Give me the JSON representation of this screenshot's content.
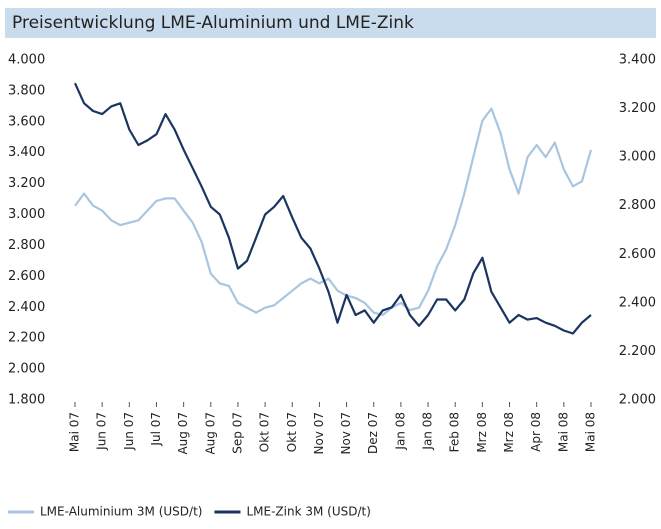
{
  "chart_data": {
    "type": "line",
    "title": "Preisentwicklung LME-Aluminium und LME-Zink",
    "categories": [
      "Mai 07",
      null,
      null,
      "Jun 07",
      null,
      null,
      "Jun 07",
      null,
      null,
      "Jul 07",
      null,
      null,
      "Aug 07",
      null,
      null,
      "Aug 07",
      null,
      null,
      "Sep 07",
      null,
      null,
      "Okt 07",
      null,
      null,
      "Okt 07",
      null,
      null,
      "Nov 07",
      null,
      null,
      "Nov 07",
      null,
      null,
      "Dez 07",
      null,
      null,
      "Jan 08",
      null,
      null,
      "Jan 08",
      null,
      null,
      "Feb 08",
      null,
      null,
      "Mrz 08",
      null,
      null,
      "Mrz 08",
      null,
      null,
      "Apr 08",
      null,
      null,
      "Mai 08",
      null,
      null,
      "Mai 08"
    ],
    "series": [
      {
        "name": "LME-Aluminium 3M (USD/t)",
        "color": "#a9c5df",
        "axis": "y2",
        "values": [
          2800,
          2850,
          2800,
          2780,
          2740,
          2720,
          2730,
          2740,
          2780,
          2820,
          2830,
          2830,
          2780,
          2730,
          2650,
          2520,
          2480,
          2470,
          2400,
          2380,
          2360,
          2380,
          2390,
          2420,
          2450,
          2480,
          2500,
          2480,
          2500,
          2450,
          2430,
          2420,
          2400,
          2360,
          2350,
          2380,
          2400,
          2370,
          2380,
          2450,
          2550,
          2620,
          2720,
          2850,
          3000,
          3150,
          3200,
          3100,
          2950,
          2850,
          3000,
          3050,
          3000,
          3060,
          2950,
          2880,
          2900,
          3030
        ]
      },
      {
        "name": "LME-Zink 3M (USD/t)",
        "color": "#1b3561",
        "values": [
          3850,
          3720,
          3670,
          3650,
          3700,
          3720,
          3550,
          3450,
          3480,
          3520,
          3650,
          3550,
          3420,
          3300,
          3180,
          3050,
          3000,
          2850,
          2650,
          2700,
          2850,
          3000,
          3050,
          3120,
          2980,
          2850,
          2780,
          2650,
          2500,
          2300,
          2480,
          2350,
          2380,
          2300,
          2380,
          2400,
          2480,
          2350,
          2280,
          2350,
          2450,
          2450,
          2380,
          2450,
          2620,
          2720,
          2500,
          2400,
          2300,
          2350,
          2320,
          2330,
          2300,
          2280,
          2250,
          2230,
          2300,
          2350
        ]
      }
    ],
    "ylim": [
      1800,
      4000
    ],
    "yticks": [
      {
        "value": 1800,
        "label": "1.800"
      },
      {
        "value": 2000,
        "label": "2.000"
      },
      {
        "value": 2200,
        "label": "2.200"
      },
      {
        "value": 2400,
        "label": "2.400"
      },
      {
        "value": 2600,
        "label": "2.600"
      },
      {
        "value": 2800,
        "label": "2.800"
      },
      {
        "value": 3000,
        "label": "3.000"
      },
      {
        "value": 3200,
        "label": "3.200"
      },
      {
        "value": 3400,
        "label": "3.400"
      },
      {
        "value": 3600,
        "label": "3.600"
      },
      {
        "value": 3800,
        "label": "3.800"
      },
      {
        "value": 4000,
        "label": "4.000"
      }
    ],
    "y2lim": [
      2000,
      3400
    ],
    "y2ticks": [
      {
        "value": 2000,
        "label": "2.000"
      },
      {
        "value": 2200,
        "label": "2.200"
      },
      {
        "value": 2400,
        "label": "2.400"
      },
      {
        "value": 2600,
        "label": "2.600"
      },
      {
        "value": 2800,
        "label": "2.800"
      },
      {
        "value": 3000,
        "label": "3.000"
      },
      {
        "value": 3200,
        "label": "3.200"
      },
      {
        "value": 3400,
        "label": "3.400"
      }
    ],
    "grid": false,
    "legend": "bottom"
  }
}
